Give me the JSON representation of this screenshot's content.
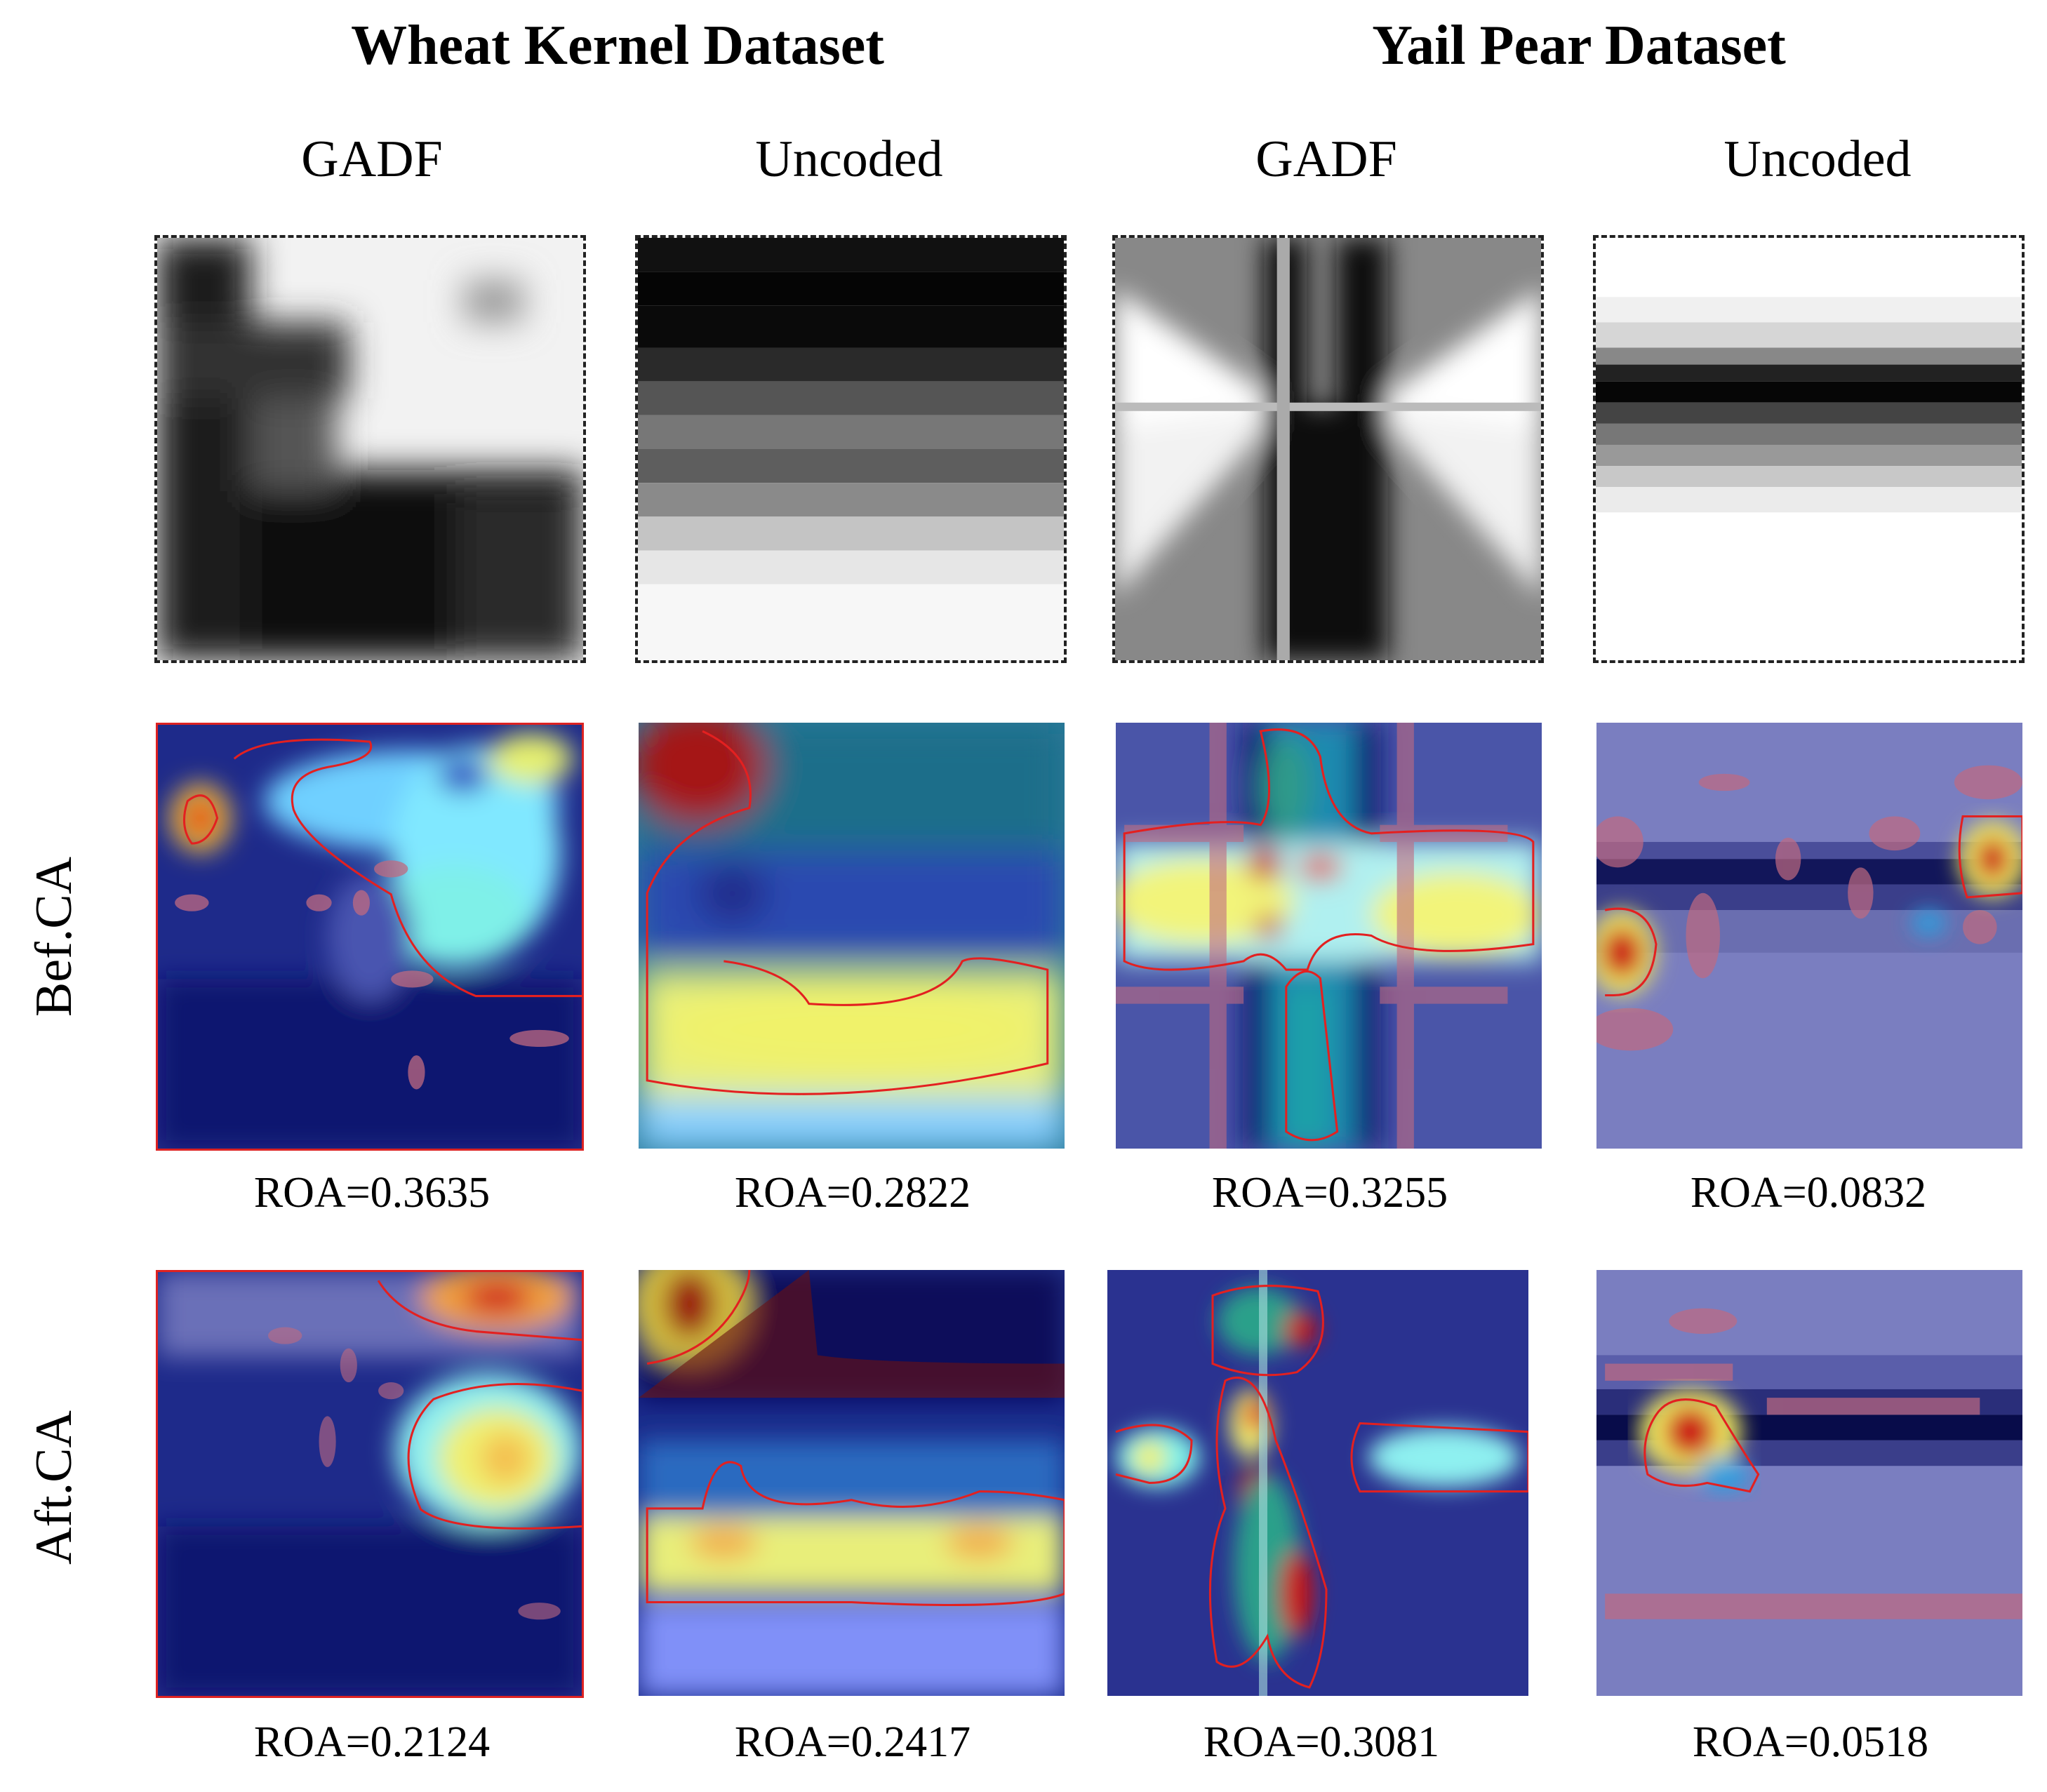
{
  "datasets": [
    {
      "title": "Wheat Kernel Dataset"
    },
    {
      "title": "Yail Pear Dataset"
    }
  ],
  "columns": [
    "GADF",
    "Uncoded",
    "GADF",
    "Uncoded"
  ],
  "rows": [
    "Bef.CA",
    "Aft.CA"
  ],
  "roa": {
    "bef": [
      "ROA=0.3635",
      "ROA=0.2822",
      "ROA=0.3255",
      "ROA=0.0832"
    ],
    "aft": [
      "ROA=0.2124",
      "ROA=0.2417",
      "ROA=0.3081",
      "ROA=0.0518"
    ]
  }
}
